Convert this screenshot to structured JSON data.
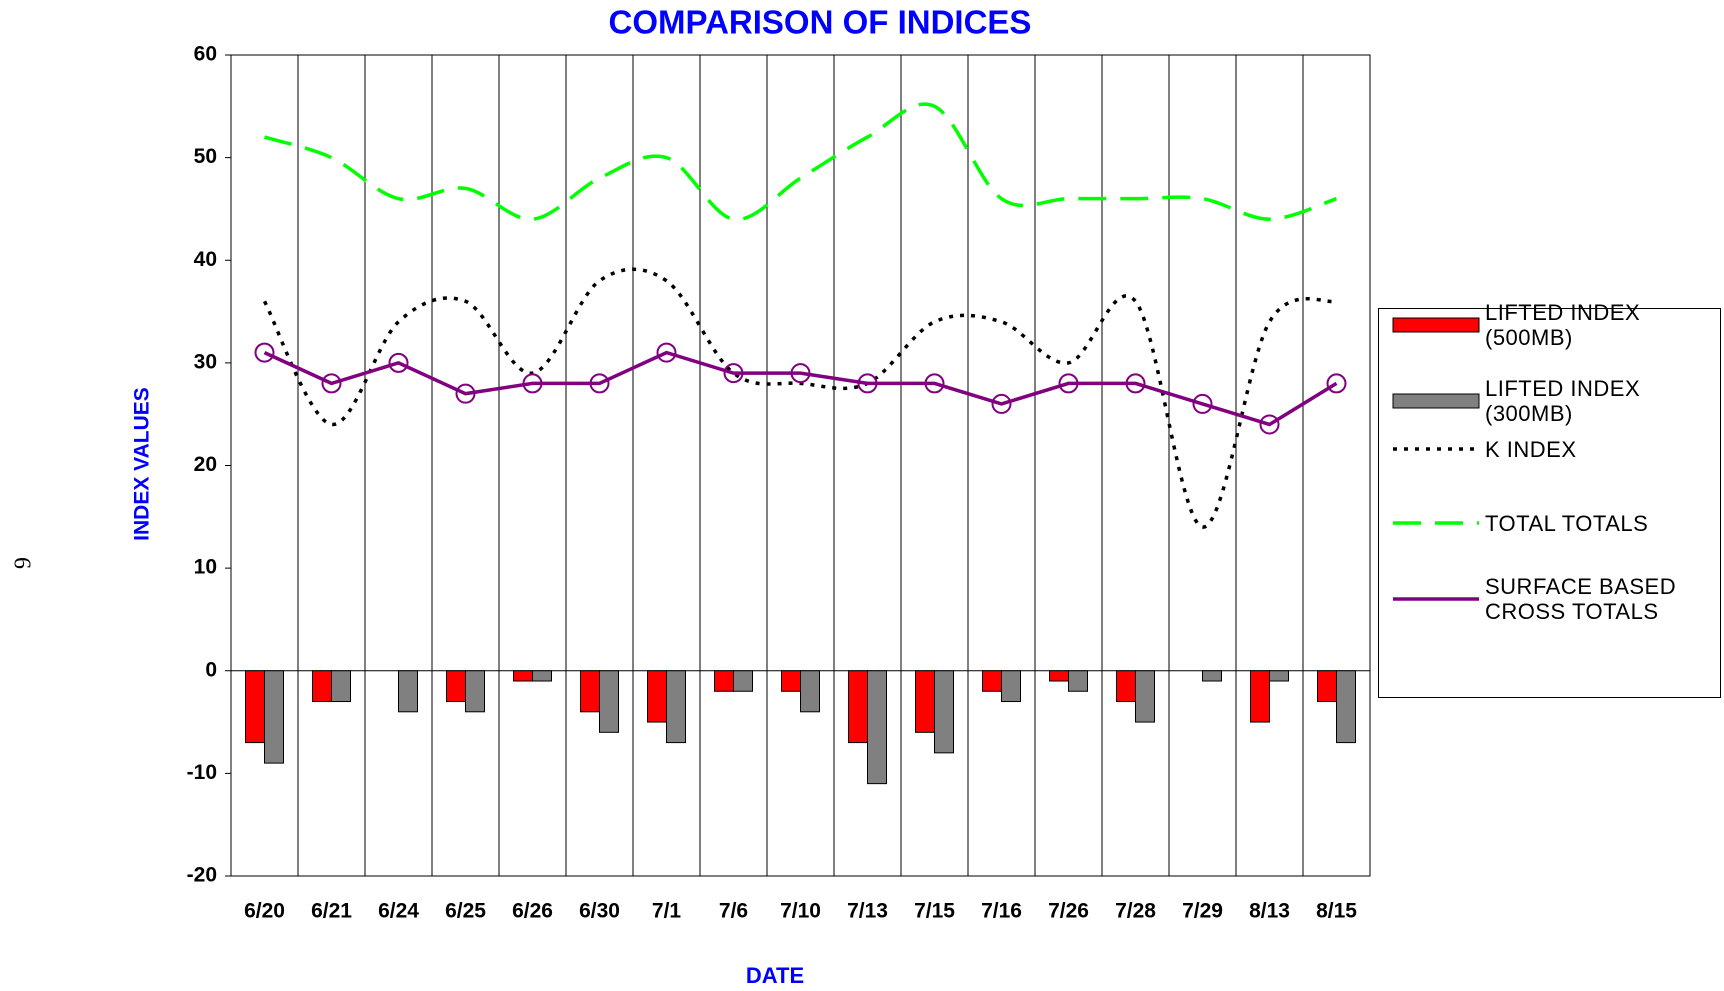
{
  "page_number": "6",
  "chart_data": {
    "type": "bar_line",
    "title": "COMPARISON OF INDICES",
    "x_label": "DATE",
    "y_label": "INDEX VALUES",
    "categories": [
      "6/20",
      "6/21",
      "6/24",
      "6/25",
      "6/26",
      "6/30",
      "7/1",
      "7/6",
      "7/10",
      "7/13",
      "7/15",
      "7/16",
      "7/26",
      "7/28",
      "7/29",
      "8/13",
      "8/15"
    ],
    "ylim": [
      -20,
      60
    ],
    "yticks": [
      -20,
      -10,
      0,
      10,
      20,
      30,
      40,
      50,
      60
    ],
    "grid": false,
    "series": [
      {
        "name": "LIFTED INDEX (500MB)",
        "type": "bar",
        "color": "#ff0000",
        "values": [
          -7,
          -3,
          0,
          -3,
          -1,
          -4,
          -5,
          -2,
          -2,
          -7,
          -6,
          -2,
          -1,
          -3,
          0,
          -5,
          -3
        ]
      },
      {
        "name": "LIFTED INDEX (300MB)",
        "type": "bar",
        "color": "#808080",
        "values": [
          -9,
          -3,
          -4,
          -4,
          -1,
          -6,
          -7,
          -2,
          -4,
          -11,
          -8,
          -3,
          -2,
          -5,
          -1,
          -1,
          -7
        ]
      },
      {
        "name": "K INDEX",
        "type": "line",
        "style": "dotted",
        "color": "#000000",
        "values": [
          36,
          24,
          34,
          36,
          29,
          38,
          38,
          29,
          28,
          28,
          34,
          34,
          30,
          36,
          14,
          34,
          36
        ]
      },
      {
        "name": "TOTAL TOTALS",
        "type": "line",
        "style": "dashed",
        "color": "#00ff00",
        "values": [
          52,
          50,
          46,
          47,
          44,
          48,
          50,
          44,
          48,
          52,
          55,
          46,
          46,
          46,
          46,
          44,
          46
        ]
      },
      {
        "name": "SURFACE BASED CROSS TOTALS",
        "type": "line",
        "style": "solid",
        "markers": true,
        "color": "#800080",
        "values": [
          31,
          28,
          30,
          27,
          28,
          28,
          31,
          29,
          29,
          28,
          28,
          26,
          28,
          28,
          26,
          24,
          28
        ]
      }
    ]
  }
}
